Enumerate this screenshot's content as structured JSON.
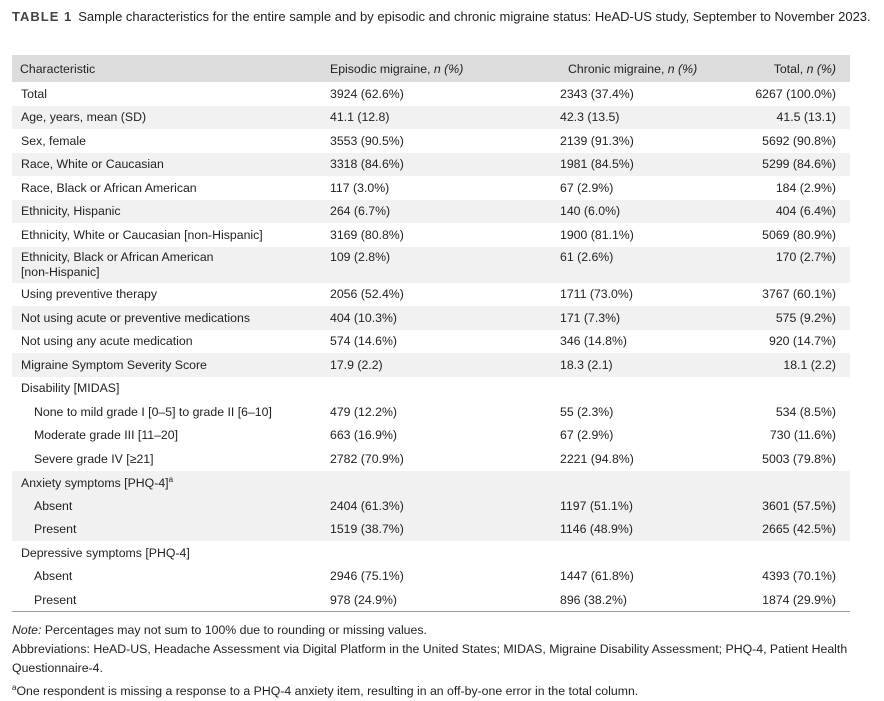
{
  "caption": {
    "label": "TABLE 1",
    "text": "Sample characteristics for the entire sample and by episodic and chronic migraine status: HeAD-US study, September to November 2023."
  },
  "headers": {
    "characteristic": "Characteristic",
    "episodic": "Episodic migraine,",
    "chronic": "Chronic migraine,",
    "total": "Total,",
    "n_pct": "n (%)"
  },
  "rows": [
    {
      "label": "Total",
      "episodic": "3924 (62.6%)",
      "chronic": "2343 (37.4%)",
      "total": "6267 (100.0%)"
    },
    {
      "label": "Age, years, mean (SD)",
      "episodic": "41.1 (12.8)",
      "chronic": "42.3 (13.5)",
      "total": "41.5 (13.1)"
    },
    {
      "label": "Sex, female",
      "episodic": "3553 (90.5%)",
      "chronic": "2139 (91.3%)",
      "total": "5692 (90.8%)"
    },
    {
      "label": "Race, White or Caucasian",
      "episodic": "3318 (84.6%)",
      "chronic": "1981 (84.5%)",
      "total": "5299 (84.6%)"
    },
    {
      "label": "Race, Black or African American",
      "episodic": "117 (3.0%)",
      "chronic": "67 (2.9%)",
      "total": "184 (2.9%)"
    },
    {
      "label": "Ethnicity, Hispanic",
      "episodic": "264 (6.7%)",
      "chronic": "140 (6.0%)",
      "total": "404 (6.4%)"
    },
    {
      "label": "Ethnicity, White or Caucasian [non-Hispanic]",
      "episodic": "3169 (80.8%)",
      "chronic": "1900 (81.1%)",
      "total": "5069 (80.9%)"
    },
    {
      "label": "Ethnicity, Black or African American",
      "label2": "[non-Hispanic]",
      "episodic": "109 (2.8%)",
      "chronic": "61 (2.6%)",
      "total": "170 (2.7%)"
    },
    {
      "label": "Using preventive therapy",
      "episodic": "2056 (52.4%)",
      "chronic": "1711 (73.0%)",
      "total": "3767 (60.1%)"
    },
    {
      "label": "Not using acute or preventive medications",
      "episodic": "404 (10.3%)",
      "chronic": "171 (7.3%)",
      "total": "575 (9.2%)"
    },
    {
      "label": "Not using any acute medication",
      "episodic": "574 (14.6%)",
      "chronic": "346 (14.8%)",
      "total": "920 (14.7%)"
    },
    {
      "label": "Migraine Symptom Severity Score",
      "episodic": "17.9 (2.2)",
      "chronic": "18.3 (2.1)",
      "total": "18.1 (2.2)"
    },
    {
      "label": "Disability [MIDAS]",
      "episodic": "",
      "chronic": "",
      "total": ""
    },
    {
      "label": "None to mild grade I [0–5] to grade II [6–10]",
      "episodic": "479 (12.2%)",
      "chronic": "55 (2.3%)",
      "total": "534 (8.5%)"
    },
    {
      "label": "Moderate grade III [11–20]",
      "episodic": "663 (16.9%)",
      "chronic": "67 (2.9%)",
      "total": "730 (11.6%)"
    },
    {
      "label": "Severe grade IV [≥21]",
      "episodic": "2782 (70.9%)",
      "chronic": "2221 (94.8%)",
      "total": "5003 (79.8%)"
    },
    {
      "label": "Anxiety symptoms [PHQ-4]",
      "sup": "a",
      "episodic": "",
      "chronic": "",
      "total": ""
    },
    {
      "label": "Absent",
      "episodic": "2404 (61.3%)",
      "chronic": "1197 (51.1%)",
      "total": "3601 (57.5%)"
    },
    {
      "label": "Present",
      "episodic": "1519 (38.7%)",
      "chronic": "1146 (48.9%)",
      "total": "2665 (42.5%)"
    },
    {
      "label": "Depressive symptoms [PHQ-4]",
      "episodic": "",
      "chronic": "",
      "total": ""
    },
    {
      "label": "Absent",
      "episodic": "2946 (75.1%)",
      "chronic": "1447 (61.8%)",
      "total": "4393 (70.1%)"
    },
    {
      "label": "Present",
      "episodic": "978 (24.9%)",
      "chronic": "896 (38.2%)",
      "total": "1874 (29.9%)"
    }
  ],
  "notes": {
    "note_label": "Note:",
    "note_text": " Percentages may not sum to 100% due to rounding or missing values.",
    "abbreviations": "Abbreviations: HeAD-US, Headache Assessment via Digital Platform in the United States; MIDAS, Migraine Disability Assessment; PHQ-4, Patient Health Questionnaire-4.",
    "footnote_mark": "a",
    "footnote_text": "One respondent is missing a response to a PHQ-4 anxiety item, resulting in an off-by-one error in the total column."
  }
}
